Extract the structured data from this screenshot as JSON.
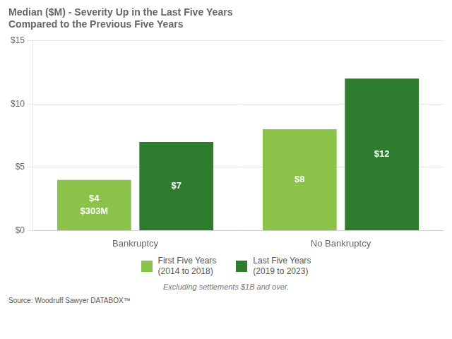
{
  "chart_data": {
    "type": "bar",
    "title": [
      "Median ($M) - Severity Up in the Last Five Years",
      "Compared to the Previous Five Years"
    ],
    "categories": [
      "Bankruptcy",
      "No Bankruptcy"
    ],
    "series": [
      {
        "name": "First Five Years\n(2014 to 2018)",
        "color": "#8bc34a",
        "values": [
          4,
          8
        ],
        "value_labels": [
          "$4\n$303M",
          "$8"
        ]
      },
      {
        "name": "Last Five Years\n(2019 to 2023)",
        "color": "#2e7d2e",
        "values": [
          7,
          12
        ],
        "value_labels": [
          "$7",
          "$12"
        ]
      }
    ],
    "ylim": [
      0,
      15
    ],
    "yticks": [
      {
        "value": 0,
        "label": "$0"
      },
      {
        "value": 5,
        "label": "$5"
      },
      {
        "value": 10,
        "label": "$10"
      },
      {
        "value": 15,
        "label": "$15"
      }
    ],
    "grid": true,
    "legend": "bottom",
    "data_labels": true,
    "footnote": "Excluding settlements $1B and over.",
    "source": "Source: Woodruff Sawyer DATABOX™"
  }
}
